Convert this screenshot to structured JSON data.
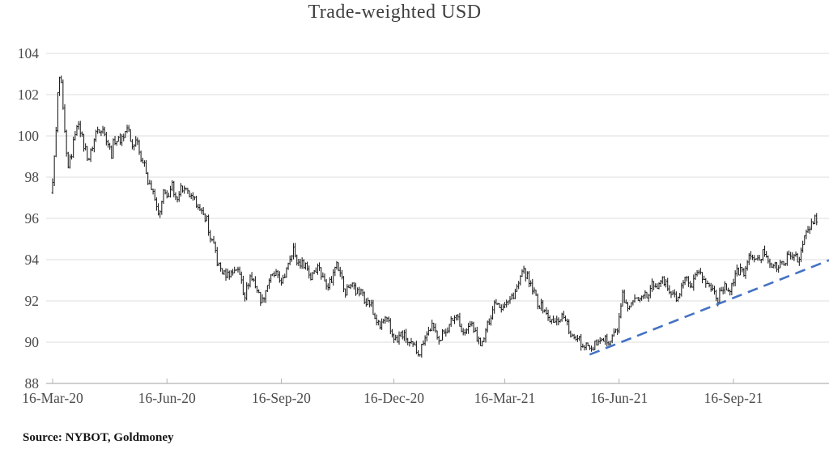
{
  "title": "Trade-weighted USD",
  "source_note": "Source: NYBOT, Goldmoney",
  "colors": {
    "bar": "#1a1a1a",
    "trendline": "#4472c4",
    "gridline": "#dedede",
    "axis": "#b3b3b3",
    "label_text": "#4a4a4a"
  },
  "chart_data": {
    "type": "bar",
    "subtype": "ohlc-daily-bars",
    "title": "Trade-weighted USD",
    "xlabel": "",
    "ylabel": "",
    "ylim": [
      88,
      104
    ],
    "grid": true,
    "legend": "none",
    "y_ticks": [
      88,
      90,
      92,
      94,
      96,
      98,
      100,
      102,
      104
    ],
    "x_ticks": [
      {
        "label": "16-Mar-20",
        "date": "2020-03-16"
      },
      {
        "label": "16-Jun-20",
        "date": "2020-06-16"
      },
      {
        "label": "16-Sep-20",
        "date": "2020-09-16"
      },
      {
        "label": "16-Dec-20",
        "date": "2020-12-16"
      },
      {
        "label": "16-Mar-21",
        "date": "2021-03-16"
      },
      {
        "label": "16-Jun-21",
        "date": "2021-06-16"
      },
      {
        "label": "16-Sep-21",
        "date": "2021-09-16"
      }
    ],
    "series": [
      {
        "name": "Trade-weighted USD index",
        "points": [
          [
            "2020-03-16",
            97.9
          ],
          [
            "2020-03-17",
            98.9
          ],
          [
            "2020-03-18",
            100.2
          ],
          [
            "2020-03-19",
            102.0
          ],
          [
            "2020-03-20",
            102.8
          ],
          [
            "2020-03-23",
            102.4
          ],
          [
            "2020-03-24",
            101.2
          ],
          [
            "2020-03-26",
            99.0
          ],
          [
            "2020-03-27",
            98.4
          ],
          [
            "2020-03-31",
            99.1
          ],
          [
            "2020-04-02",
            100.2
          ],
          [
            "2020-04-06",
            100.7
          ],
          [
            "2020-04-09",
            99.5
          ],
          [
            "2020-04-14",
            98.9
          ],
          [
            "2020-04-17",
            99.8
          ],
          [
            "2020-04-21",
            100.3
          ],
          [
            "2020-04-24",
            100.4
          ],
          [
            "2020-04-28",
            99.9
          ],
          [
            "2020-05-01",
            99.1
          ],
          [
            "2020-05-05",
            99.8
          ],
          [
            "2020-05-08",
            99.8
          ],
          [
            "2020-05-12",
            100.0
          ],
          [
            "2020-05-14",
            100.4
          ],
          [
            "2020-05-19",
            99.5
          ],
          [
            "2020-05-22",
            99.9
          ],
          [
            "2020-05-26",
            99.0
          ],
          [
            "2020-05-29",
            98.3
          ],
          [
            "2020-06-02",
            97.7
          ],
          [
            "2020-06-05",
            96.9
          ],
          [
            "2020-06-10",
            96.2
          ],
          [
            "2020-06-12",
            97.3
          ],
          [
            "2020-06-16",
            97.0
          ],
          [
            "2020-06-19",
            97.6
          ],
          [
            "2020-06-23",
            96.9
          ],
          [
            "2020-06-26",
            97.5
          ],
          [
            "2020-06-30",
            97.4
          ],
          [
            "2020-07-02",
            97.2
          ],
          [
            "2020-07-07",
            96.9
          ],
          [
            "2020-07-10",
            96.7
          ],
          [
            "2020-07-14",
            96.2
          ],
          [
            "2020-07-17",
            96.0
          ],
          [
            "2020-07-21",
            95.1
          ],
          [
            "2020-07-24",
            94.4
          ],
          [
            "2020-07-28",
            93.7
          ],
          [
            "2020-07-31",
            93.3
          ],
          [
            "2020-08-04",
            93.3
          ],
          [
            "2020-08-07",
            93.4
          ],
          [
            "2020-08-11",
            93.6
          ],
          [
            "2020-08-14",
            93.1
          ],
          [
            "2020-08-18",
            92.3
          ],
          [
            "2020-08-21",
            93.2
          ],
          [
            "2020-08-25",
            93.0
          ],
          [
            "2020-08-28",
            92.3
          ],
          [
            "2020-09-01",
            92.0
          ],
          [
            "2020-09-04",
            92.8
          ],
          [
            "2020-09-09",
            93.2
          ],
          [
            "2020-09-11",
            93.3
          ],
          [
            "2020-09-15",
            93.0
          ],
          [
            "2020-09-18",
            93.0
          ],
          [
            "2020-09-22",
            93.9
          ],
          [
            "2020-09-25",
            94.6
          ],
          [
            "2020-09-29",
            93.9
          ],
          [
            "2020-10-02",
            93.8
          ],
          [
            "2020-10-06",
            93.8
          ],
          [
            "2020-10-09",
            93.1
          ],
          [
            "2020-10-13",
            93.5
          ],
          [
            "2020-10-16",
            93.7
          ],
          [
            "2020-10-20",
            93.1
          ],
          [
            "2020-10-23",
            92.8
          ],
          [
            "2020-10-27",
            93.0
          ],
          [
            "2020-10-30",
            94.0
          ],
          [
            "2020-11-03",
            93.5
          ],
          [
            "2020-11-06",
            92.2
          ],
          [
            "2020-11-09",
            92.7
          ],
          [
            "2020-11-13",
            92.8
          ],
          [
            "2020-11-17",
            92.4
          ],
          [
            "2020-11-20",
            92.4
          ],
          [
            "2020-11-24",
            92.0
          ],
          [
            "2020-11-27",
            91.8
          ],
          [
            "2020-12-01",
            91.2
          ],
          [
            "2020-12-04",
            90.7
          ],
          [
            "2020-12-09",
            91.1
          ],
          [
            "2020-12-11",
            90.9
          ],
          [
            "2020-12-15",
            90.4
          ],
          [
            "2020-12-18",
            90.0
          ],
          [
            "2020-12-22",
            90.4
          ],
          [
            "2020-12-24",
            90.3
          ],
          [
            "2020-12-29",
            89.9
          ],
          [
            "2021-01-06",
            89.5
          ],
          [
            "2021-01-08",
            90.1
          ],
          [
            "2021-01-12",
            90.4
          ],
          [
            "2021-01-15",
            90.8
          ],
          [
            "2021-01-19",
            90.5
          ],
          [
            "2021-01-22",
            90.1
          ],
          [
            "2021-01-27",
            90.6
          ],
          [
            "2021-02-02",
            91.1
          ],
          [
            "2021-02-05",
            91.4
          ],
          [
            "2021-02-10",
            90.4
          ],
          [
            "2021-02-12",
            90.5
          ],
          [
            "2021-02-17",
            90.9
          ],
          [
            "2021-02-19",
            90.4
          ],
          [
            "2021-02-25",
            89.9
          ],
          [
            "2021-03-02",
            90.8
          ],
          [
            "2021-03-05",
            91.6
          ],
          [
            "2021-03-09",
            92.0
          ],
          [
            "2021-03-12",
            91.7
          ],
          [
            "2021-03-16",
            91.9
          ],
          [
            "2021-03-19",
            92.0
          ],
          [
            "2021-03-23",
            92.3
          ],
          [
            "2021-03-26",
            92.8
          ],
          [
            "2021-03-31",
            93.4
          ],
          [
            "2021-04-06",
            92.7
          ],
          [
            "2021-04-09",
            92.2
          ],
          [
            "2021-04-13",
            91.8
          ],
          [
            "2021-04-16",
            91.6
          ],
          [
            "2021-04-20",
            91.2
          ],
          [
            "2021-04-23",
            90.9
          ],
          [
            "2021-04-27",
            91.0
          ],
          [
            "2021-04-30",
            91.3
          ],
          [
            "2021-05-04",
            91.2
          ],
          [
            "2021-05-07",
            90.2
          ],
          [
            "2021-05-11",
            90.2
          ],
          [
            "2021-05-14",
            90.3
          ],
          [
            "2021-05-18",
            89.8
          ],
          [
            "2021-05-21",
            90.0
          ],
          [
            "2021-05-25",
            89.6
          ],
          [
            "2021-05-28",
            90.0
          ],
          [
            "2021-06-01",
            89.9
          ],
          [
            "2021-06-04",
            90.1
          ],
          [
            "2021-06-08",
            90.1
          ],
          [
            "2021-06-11",
            90.5
          ],
          [
            "2021-06-15",
            90.5
          ],
          [
            "2021-06-17",
            91.9
          ],
          [
            "2021-06-18",
            92.3
          ],
          [
            "2021-06-22",
            91.7
          ],
          [
            "2021-06-25",
            91.8
          ],
          [
            "2021-06-29",
            92.0
          ],
          [
            "2021-07-02",
            92.2
          ],
          [
            "2021-07-07",
            92.5
          ],
          [
            "2021-07-09",
            92.1
          ],
          [
            "2021-07-13",
            92.8
          ],
          [
            "2021-07-16",
            92.7
          ],
          [
            "2021-07-20",
            93.0
          ],
          [
            "2021-07-23",
            92.9
          ],
          [
            "2021-07-27",
            92.4
          ],
          [
            "2021-07-30",
            92.2
          ],
          [
            "2021-08-03",
            92.1
          ],
          [
            "2021-08-06",
            92.8
          ],
          [
            "2021-08-10",
            93.0
          ],
          [
            "2021-08-13",
            92.5
          ],
          [
            "2021-08-17",
            93.1
          ],
          [
            "2021-08-20",
            93.5
          ],
          [
            "2021-08-24",
            93.0
          ],
          [
            "2021-08-27",
            92.7
          ],
          [
            "2021-08-31",
            92.6
          ],
          [
            "2021-09-03",
            92.1
          ],
          [
            "2021-09-08",
            92.7
          ],
          [
            "2021-09-10",
            92.6
          ],
          [
            "2021-09-14",
            92.6
          ],
          [
            "2021-09-17",
            93.2
          ],
          [
            "2021-09-22",
            93.5
          ],
          [
            "2021-09-24",
            93.3
          ],
          [
            "2021-09-28",
            93.8
          ],
          [
            "2021-09-30",
            94.3
          ],
          [
            "2021-10-05",
            93.9
          ],
          [
            "2021-10-08",
            94.1
          ],
          [
            "2021-10-12",
            94.4
          ],
          [
            "2021-10-15",
            93.9
          ],
          [
            "2021-10-19",
            93.7
          ],
          [
            "2021-10-22",
            93.6
          ],
          [
            "2021-10-26",
            93.8
          ],
          [
            "2021-10-29",
            94.1
          ],
          [
            "2021-11-02",
            94.1
          ],
          [
            "2021-11-05",
            94.3
          ],
          [
            "2021-11-09",
            94.0
          ],
          [
            "2021-11-12",
            95.1
          ],
          [
            "2021-11-16",
            95.4
          ],
          [
            "2021-11-18",
            95.7
          ],
          [
            "2021-11-22",
            96.0
          ],
          [
            "2021-11-23",
            95.8
          ]
        ]
      }
    ],
    "trendline": {
      "style": "dashed",
      "start_date": "2021-05-24",
      "start_value": 89.4,
      "end_date": "2021-12-03",
      "end_value": 94.0
    }
  }
}
